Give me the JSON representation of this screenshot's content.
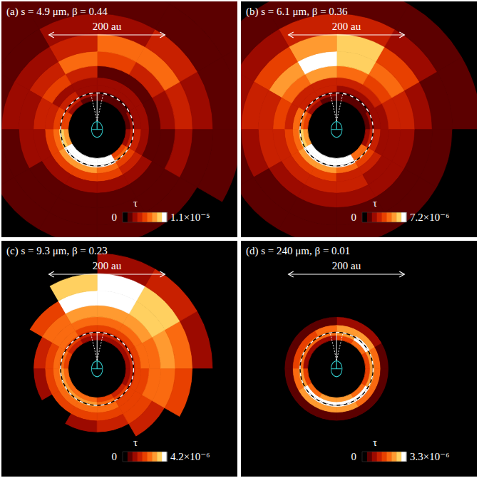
{
  "chart_data": [
    {
      "type": "heatmap",
      "title": "(a) s = 4.9 μm, β = 0.44",
      "xlim": [
        -165,
        242
      ],
      "ylim": [
        -186,
        221
      ],
      "tick_labels": false,
      "grid": false,
      "r_edges": [
        50,
        58,
        66,
        76,
        90,
        110,
        135,
        165,
        200,
        250,
        330
      ],
      "theta_edges": [
        0,
        30,
        60,
        90,
        120,
        150,
        180,
        210,
        240,
        270,
        300,
        330,
        360
      ],
      "tau": [
        [
          2e-06,
          1.5e-06,
          1.5e-06,
          2e-06,
          3e-06,
          5e-06,
          8e-06,
          1e-05,
          1.1e-05,
          1e-05,
          6e-06,
          3e-06
        ],
        [
          3e-06,
          2e-06,
          2e-06,
          2.5e-06,
          4e-06,
          6e-06,
          9e-06,
          1.1e-05,
          1.1e-05,
          1e-05,
          7e-06,
          4e-06
        ],
        [
          3e-06,
          2.5e-06,
          2.5e-06,
          3e-06,
          4e-06,
          5e-06,
          7e-06,
          8e-06,
          8e-06,
          7e-06,
          5e-06,
          4e-06
        ],
        [
          3e-06,
          3e-06,
          3e-06,
          3e-06,
          3e-06,
          4e-06,
          5e-06,
          5e-06,
          5e-06,
          5e-06,
          4e-06,
          3e-06
        ],
        [
          2e-06,
          2e-06,
          2e-06,
          4e-06,
          6e-06,
          4e-06,
          3e-06,
          3e-06,
          3e-06,
          3e-06,
          3e-06,
          2e-06
        ],
        [
          3e-06,
          4e-06,
          6e-06,
          7e-06,
          4e-06,
          3e-06,
          3e-06,
          2e-06,
          2e-06,
          2e-06,
          2e-06,
          2e-06
        ],
        [
          4e-06,
          7e-06,
          7e-06,
          4e-06,
          3e-06,
          3e-06,
          2e-06,
          2e-06,
          2e-06,
          2e-06,
          2e-06,
          3e-06
        ],
        [
          3e-06,
          4e-06,
          3e-06,
          3e-06,
          2e-06,
          2e-06,
          2e-06,
          1.5e-06,
          1.5e-06,
          1.5e-06,
          1.5e-06,
          2e-06
        ],
        [
          2e-06,
          2e-06,
          2e-06,
          2e-06,
          1.5e-06,
          1.5e-06,
          1.5e-06,
          0,
          0,
          0,
          0,
          1.5e-06
        ],
        [
          1.5e-06,
          1.5e-06,
          1.5e-06,
          1.5e-06,
          1.5e-06,
          0,
          0,
          0,
          0,
          0,
          0,
          0
        ]
      ],
      "colorbar": {
        "title": "τ",
        "range": [
          0,
          1.1e-05
        ],
        "ticks": [
          0,
          {
            "value": 1.1e-05,
            "label": "1.1×10⁻⁵"
          }
        ]
      },
      "scale_bar": {
        "label": "200 au",
        "length": 200
      }
    },
    {
      "type": "heatmap",
      "title": "(b) s = 6.1 μm, β = 0.36",
      "xlim": [
        -165,
        242
      ],
      "ylim": [
        -186,
        221
      ],
      "tick_labels": false,
      "grid": false,
      "r_edges": [
        50,
        58,
        66,
        76,
        90,
        110,
        135,
        165,
        200,
        250,
        330
      ],
      "theta_edges": [
        0,
        30,
        60,
        90,
        120,
        150,
        180,
        210,
        240,
        270,
        300,
        330,
        360
      ],
      "tau": [
        [
          1.5e-06,
          1e-06,
          1e-06,
          1.5e-06,
          2e-06,
          3.5e-06,
          5e-06,
          6.5e-06,
          7.2e-06,
          6.5e-06,
          4e-06,
          2e-06
        ],
        [
          2e-06,
          1.5e-06,
          1.5e-06,
          2e-06,
          3e-06,
          4.5e-06,
          6e-06,
          7e-06,
          7e-06,
          6.5e-06,
          4.5e-06,
          2.5e-06
        ],
        [
          2e-06,
          2e-06,
          2e-06,
          2.5e-06,
          3e-06,
          4e-06,
          4.5e-06,
          5e-06,
          5e-06,
          4.5e-06,
          3.5e-06,
          2.5e-06
        ],
        [
          2e-06,
          2.5e-06,
          3e-06,
          3e-06,
          3e-06,
          3e-06,
          3.5e-06,
          3.5e-06,
          3.5e-06,
          3e-06,
          2.5e-06,
          2e-06
        ],
        [
          2.5e-06,
          3.5e-06,
          4.5e-06,
          5e-06,
          4.5e-06,
          3.5e-06,
          3e-06,
          3e-06,
          2.5e-06,
          2.5e-06,
          2e-06,
          2e-06
        ],
        [
          2.5e-06,
          4e-06,
          6e-06,
          6.5e-06,
          5e-06,
          3e-06,
          2.5e-06,
          2e-06,
          2e-06,
          2e-06,
          2e-06,
          2e-06
        ],
        [
          2e-06,
          3.5e-06,
          6e-06,
          5.5e-06,
          3.5e-06,
          2.5e-06,
          2e-06,
          1.5e-06,
          1.5e-06,
          1.5e-06,
          1.5e-06,
          1.5e-06
        ],
        [
          1.5e-06,
          2e-06,
          3e-06,
          3e-06,
          2e-06,
          2e-06,
          1.5e-06,
          1e-06,
          1e-06,
          1e-06,
          1e-06,
          1e-06
        ],
        [
          1e-06,
          1e-06,
          1e-06,
          1e-06,
          1e-06,
          1e-06,
          1e-06,
          0,
          0,
          0,
          0,
          0
        ],
        [
          0,
          0,
          0,
          0,
          0,
          0,
          0,
          0,
          0,
          0,
          0,
          0
        ]
      ],
      "colorbar": {
        "title": "τ",
        "range": [
          0,
          7.2e-06
        ],
        "ticks": [
          0,
          {
            "value": 7.2e-06,
            "label": "7.2×10⁻⁶"
          }
        ]
      },
      "scale_bar": {
        "label": "200 au",
        "length": 200
      }
    },
    {
      "type": "heatmap",
      "title": "(c) s = 9.3 μm, β = 0.23",
      "xlim": [
        -165,
        242
      ],
      "ylim": [
        -186,
        221
      ],
      "tick_labels": false,
      "grid": false,
      "r_edges": [
        50,
        58,
        66,
        76,
        90,
        110,
        135,
        165,
        200,
        250,
        330
      ],
      "theta_edges": [
        0,
        30,
        60,
        90,
        120,
        150,
        180,
        210,
        240,
        270,
        300,
        330,
        360
      ],
      "tau": [
        [
          1e-06,
          1e-06,
          1e-06,
          1e-06,
          1.5e-06,
          2e-06,
          2.5e-06,
          2.5e-06,
          2.5e-06,
          2e-06,
          1.5e-06,
          1e-06
        ],
        [
          1.5e-06,
          1.5e-06,
          1.5e-06,
          1.5e-06,
          2e-06,
          2.5e-06,
          3e-06,
          3e-06,
          3e-06,
          2.5e-06,
          2e-06,
          1.5e-06
        ],
        [
          2e-06,
          2e-06,
          2e-06,
          2e-06,
          2.5e-06,
          2.5e-06,
          2.5e-06,
          2.5e-06,
          2.5e-06,
          2.5e-06,
          2e-06,
          2e-06
        ],
        [
          2.5e-06,
          2.5e-06,
          2.5e-06,
          2.5e-06,
          2.5e-06,
          2e-06,
          2e-06,
          2e-06,
          2e-06,
          2e-06,
          2e-06,
          2e-06
        ],
        [
          2.5e-06,
          3e-06,
          3e-06,
          3e-06,
          2.5e-06,
          1.5e-06,
          1e-06,
          0,
          1e-06,
          1.5e-06,
          2e-06,
          2.5e-06
        ],
        [
          3e-06,
          3.5e-06,
          4e-06,
          4e-06,
          2e-06,
          0,
          0,
          0,
          0,
          0,
          1.5e-06,
          2.5e-06
        ],
        [
          2.5e-06,
          3.5e-06,
          4.2e-06,
          3.5e-06,
          0,
          0,
          0,
          0,
          0,
          0,
          0,
          2e-06
        ],
        [
          1e-06,
          1.5e-06,
          1e-06,
          0,
          0,
          0,
          0,
          0,
          0,
          0,
          0,
          0
        ],
        [
          0,
          0,
          0,
          0,
          0,
          0,
          0,
          0,
          0,
          0,
          0,
          0
        ],
        [
          0,
          0,
          0,
          0,
          0,
          0,
          0,
          0,
          0,
          0,
          0,
          0
        ]
      ],
      "colorbar": {
        "title": "τ",
        "range": [
          0,
          4.2e-06
        ],
        "ticks": [
          0,
          {
            "value": 4.2e-06,
            "label": "4.2×10⁻⁶"
          }
        ]
      },
      "scale_bar": {
        "label": "200 au",
        "length": 200
      }
    },
    {
      "type": "heatmap",
      "title": "(d) s = 240 μm, β = 0.01",
      "xlim": [
        -165,
        242
      ],
      "ylim": [
        -186,
        221
      ],
      "tick_labels": false,
      "grid": false,
      "r_edges": [
        50,
        58,
        66,
        76,
        90,
        110,
        135,
        165,
        200,
        250,
        330
      ],
      "theta_edges": [
        0,
        30,
        60,
        90,
        120,
        150,
        180,
        210,
        240,
        270,
        300,
        330,
        360
      ],
      "tau": [
        [
          1.5e-06,
          2e-06,
          1.5e-06,
          1e-06,
          1e-06,
          1e-06,
          1.5e-06,
          2e-06,
          2.5e-06,
          2.5e-06,
          2e-06,
          1.5e-06
        ],
        [
          2.5e-06,
          3e-06,
          2.5e-06,
          2e-06,
          2e-06,
          2e-06,
          2.5e-06,
          3e-06,
          3.3e-06,
          3.3e-06,
          3e-06,
          2.5e-06
        ],
        [
          2e-06,
          2.5e-06,
          2.5e-06,
          2e-06,
          1.5e-06,
          1.5e-06,
          2e-06,
          2.5e-06,
          2.5e-06,
          2.5e-06,
          2e-06,
          2e-06
        ],
        [
          5e-07,
          1e-06,
          1e-06,
          5e-07,
          5e-07,
          5e-07,
          5e-07,
          5e-07,
          5e-07,
          5e-07,
          5e-07,
          5e-07
        ],
        [
          0,
          0,
          0,
          0,
          0,
          0,
          0,
          0,
          0,
          0,
          0,
          0
        ],
        [
          0,
          0,
          0,
          0,
          0,
          0,
          0,
          0,
          0,
          0,
          0,
          0
        ],
        [
          0,
          0,
          0,
          0,
          0,
          0,
          0,
          0,
          0,
          0,
          0,
          0
        ],
        [
          0,
          0,
          0,
          0,
          0,
          0,
          0,
          0,
          0,
          0,
          0,
          0
        ],
        [
          0,
          0,
          0,
          0,
          0,
          0,
          0,
          0,
          0,
          0,
          0,
          0
        ],
        [
          0,
          0,
          0,
          0,
          0,
          0,
          0,
          0,
          0,
          0,
          0,
          0
        ]
      ],
      "colorbar": {
        "title": "τ",
        "range": [
          0,
          3.3e-06
        ],
        "ticks": [
          0,
          {
            "value": 3.3e-06,
            "label": "3.3×10⁻⁶"
          }
        ]
      },
      "scale_bar": {
        "label": "200 au",
        "length": 200
      }
    }
  ]
}
